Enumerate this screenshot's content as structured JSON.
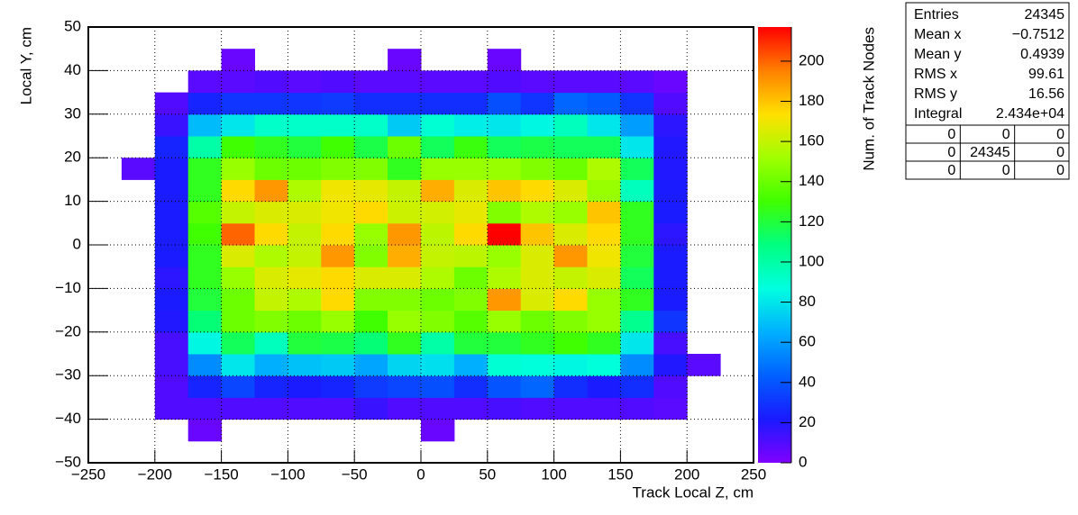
{
  "chart_data": {
    "type": "heatmap",
    "xlabel": "Track Local Z, cm",
    "ylabel": "Local Y, cm",
    "zlabel": "Num. of Track Nodes",
    "xlim": [
      -250,
      250
    ],
    "ylim": [
      -50,
      50
    ],
    "zlim": [
      0,
      217
    ],
    "xticks": [
      {
        "value": -250,
        "label": "−250"
      },
      {
        "value": -200,
        "label": "−200"
      },
      {
        "value": -150,
        "label": "−150"
      },
      {
        "value": -100,
        "label": "−100"
      },
      {
        "value": -50,
        "label": "−50"
      },
      0,
      50,
      100,
      150,
      200,
      250
    ],
    "yticks": [
      {
        "value": -50,
        "label": "−50"
      },
      {
        "value": -40,
        "label": "−40"
      },
      {
        "value": -30,
        "label": "−30"
      },
      {
        "value": -20,
        "label": "−20"
      },
      {
        "value": -10,
        "label": "−10"
      },
      0,
      10,
      20,
      30,
      40,
      50
    ],
    "zticks": [
      0,
      20,
      40,
      60,
      80,
      100,
      120,
      140,
      160,
      180,
      200
    ],
    "grid": true,
    "palette": [
      "#8000ff",
      "#1a1aff",
      "#0060ff",
      "#00b0ff",
      "#00ffe0",
      "#00ff80",
      "#40ff00",
      "#a0ff00",
      "#ffe000",
      "#ff8000",
      "#ff0000"
    ],
    "xbins": [
      -225,
      -200,
      -175,
      -150,
      -125,
      -100,
      -75,
      -50,
      -25,
      0,
      25,
      50,
      75,
      100,
      125,
      150,
      175,
      200,
      225
    ],
    "ybins": [
      -45,
      -40,
      -35,
      -30,
      -25,
      -20,
      -15,
      -10,
      -5,
      0,
      5,
      10,
      15,
      20,
      25,
      30,
      35,
      40,
      45
    ],
    "z": [
      [
        null,
        null,
        5,
        null,
        null,
        null,
        null,
        null,
        null,
        5,
        null,
        null,
        null,
        null,
        null,
        null,
        null,
        null
      ],
      [
        null,
        10,
        10,
        10,
        10,
        10,
        10,
        15,
        10,
        10,
        10,
        12,
        10,
        10,
        10,
        10,
        8,
        null
      ],
      [
        null,
        10,
        25,
        35,
        25,
        22,
        25,
        32,
        35,
        38,
        28,
        40,
        45,
        28,
        22,
        28,
        10,
        null
      ],
      [
        null,
        12,
        55,
        80,
        65,
        70,
        72,
        62,
        75,
        78,
        65,
        90,
        88,
        85,
        88,
        55,
        20,
        8
      ],
      [
        null,
        12,
        85,
        115,
        95,
        120,
        118,
        110,
        125,
        100,
        120,
        120,
        125,
        130,
        125,
        80,
        12,
        null
      ],
      [
        null,
        20,
        110,
        140,
        145,
        140,
        150,
        130,
        150,
        145,
        135,
        150,
        140,
        145,
        150,
        105,
        30,
        null
      ],
      [
        null,
        22,
        120,
        140,
        160,
        155,
        175,
        145,
        145,
        140,
        145,
        190,
        165,
        175,
        150,
        125,
        22,
        null
      ],
      [
        null,
        18,
        125,
        150,
        165,
        168,
        175,
        165,
        165,
        155,
        140,
        155,
        165,
        160,
        165,
        115,
        22,
        null
      ],
      [
        null,
        22,
        125,
        165,
        155,
        160,
        190,
        145,
        185,
        160,
        158,
        150,
        165,
        190,
        170,
        120,
        22,
        null
      ],
      [
        null,
        22,
        130,
        200,
        175,
        160,
        175,
        150,
        190,
        158,
        175,
        217,
        180,
        165,
        175,
        125,
        18,
        null
      ],
      [
        null,
        22,
        135,
        160,
        165,
        165,
        170,
        175,
        162,
        163,
        168,
        145,
        155,
        150,
        180,
        125,
        22,
        null
      ],
      [
        null,
        22,
        125,
        175,
        190,
        155,
        170,
        168,
        160,
        185,
        165,
        180,
        175,
        165,
        150,
        95,
        22,
        null
      ],
      [
        8,
        22,
        125,
        150,
        140,
        140,
        145,
        145,
        125,
        150,
        150,
        150,
        145,
        140,
        155,
        115,
        20,
        null
      ],
      [
        null,
        25,
        100,
        130,
        125,
        120,
        130,
        118,
        140,
        115,
        128,
        115,
        118,
        115,
        115,
        80,
        20,
        null
      ],
      [
        null,
        15,
        68,
        80,
        92,
        92,
        92,
        92,
        72,
        90,
        82,
        80,
        85,
        95,
        80,
        60,
        18,
        null
      ],
      [
        null,
        10,
        25,
        30,
        30,
        30,
        32,
        28,
        28,
        28,
        28,
        38,
        30,
        45,
        42,
        30,
        10,
        null
      ],
      [
        null,
        null,
        8,
        8,
        10,
        8,
        10,
        8,
        8,
        8,
        8,
        10,
        8,
        8,
        8,
        8,
        5,
        null
      ],
      [
        null,
        null,
        null,
        5,
        null,
        null,
        null,
        null,
        5,
        null,
        null,
        5,
        null,
        null,
        null,
        null,
        null,
        null
      ]
    ],
    "stats": [
      [
        "Entries",
        "24345"
      ],
      [
        "Mean x",
        "−0.7512"
      ],
      [
        "Mean y",
        "0.4939"
      ],
      [
        "RMS x",
        "99.61"
      ],
      [
        "RMS y",
        "16.56"
      ],
      [
        "Integral",
        "2.434e+04"
      ]
    ],
    "overflow": [
      [
        0,
        0,
        0
      ],
      [
        0,
        24345,
        0
      ],
      [
        0,
        0,
        0
      ]
    ]
  }
}
